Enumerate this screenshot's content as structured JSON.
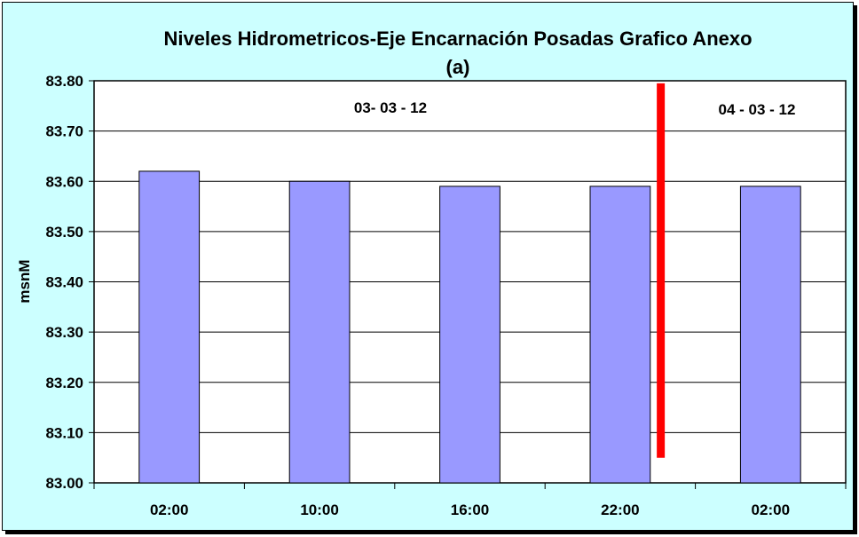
{
  "chart_data": {
    "type": "bar",
    "title_line1": "Niveles Hidrometricos-Eje Encarnación Posadas Grafico Anexo",
    "title_line2": "(a)",
    "xlabel": "",
    "ylabel": "msnM",
    "categories": [
      "02:00",
      "10:00",
      "16:00",
      "22:00",
      "02:00"
    ],
    "values": [
      83.62,
      83.6,
      83.59,
      83.59,
      83.59
    ],
    "ylim": [
      83.0,
      83.8
    ],
    "yticks": [
      "83.00",
      "83.10",
      "83.20",
      "83.30",
      "83.40",
      "83.50",
      "83.60",
      "83.70",
      "83.80"
    ],
    "grid": true,
    "legend": "none",
    "annotations": {
      "date_left": "03- 03 - 12",
      "date_right": "04 - 03 - 12"
    },
    "separator_line": {
      "between_categories": [
        3,
        4
      ],
      "from_value": 83.05,
      "to_value": 83.795
    },
    "colors": {
      "background": "#ccffff",
      "plot_area": "#ffffff",
      "bar_fill": "#9999ff",
      "separator": "#ff0000"
    }
  }
}
